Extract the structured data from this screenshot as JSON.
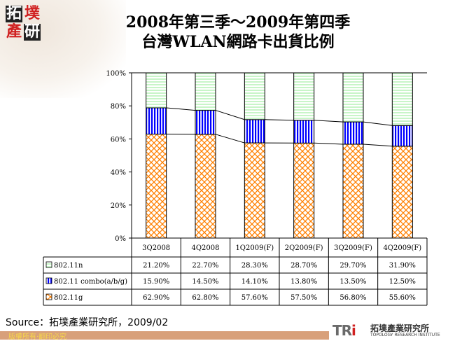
{
  "header": {
    "logo_text": "拓墣產研",
    "title_line1": "2008年第三季～2009年第四季",
    "title_line2": "台灣WLAN網路卡出貨比例"
  },
  "chart_data": {
    "type": "bar",
    "stacked": true,
    "percent": true,
    "categories": [
      "3Q2008",
      "4Q2008",
      "1Q2009(F)",
      "2Q2009(F)",
      "3Q2009(F)",
      "4Q2009(F)"
    ],
    "series": [
      {
        "name": "802.11n",
        "values": [
          21.2,
          22.7,
          28.3,
          28.7,
          29.7,
          31.9
        ],
        "labels": [
          "21.20%",
          "22.70%",
          "28.30%",
          "28.70%",
          "29.70%",
          "31.90%"
        ],
        "color": "#c8f5c8",
        "pattern": "horizontal-lines"
      },
      {
        "name": "802.11 combo(a/b/g)",
        "values": [
          15.9,
          14.5,
          14.1,
          13.8,
          13.5,
          12.5
        ],
        "labels": [
          "15.90%",
          "14.50%",
          "14.10%",
          "13.80%",
          "13.50%",
          "12.50%"
        ],
        "color": "#0000ff",
        "pattern": "vertical-lines"
      },
      {
        "name": "802.11g",
        "values": [
          62.9,
          62.8,
          57.6,
          57.5,
          56.8,
          55.6
        ],
        "labels": [
          "62.90%",
          "62.80%",
          "57.60%",
          "57.50%",
          "56.80%",
          "55.60%"
        ],
        "color": "#ff8000",
        "pattern": "diagonal-cross"
      }
    ],
    "yticks": [
      "0%",
      "20%",
      "40%",
      "60%",
      "80%",
      "100%"
    ],
    "ylim": [
      0,
      100
    ],
    "grid": false,
    "legend": "data-table",
    "series_lines": true
  },
  "source": "Source：拓墣產業研究所，2009/02",
  "footer": {
    "copyright": "版權所有‧翻印必究",
    "brand_mark": "TRi",
    "brand_cn": "拓墣產業研究所",
    "brand_en": "TOPOLOGY RESEARCH INSTITUTE"
  }
}
